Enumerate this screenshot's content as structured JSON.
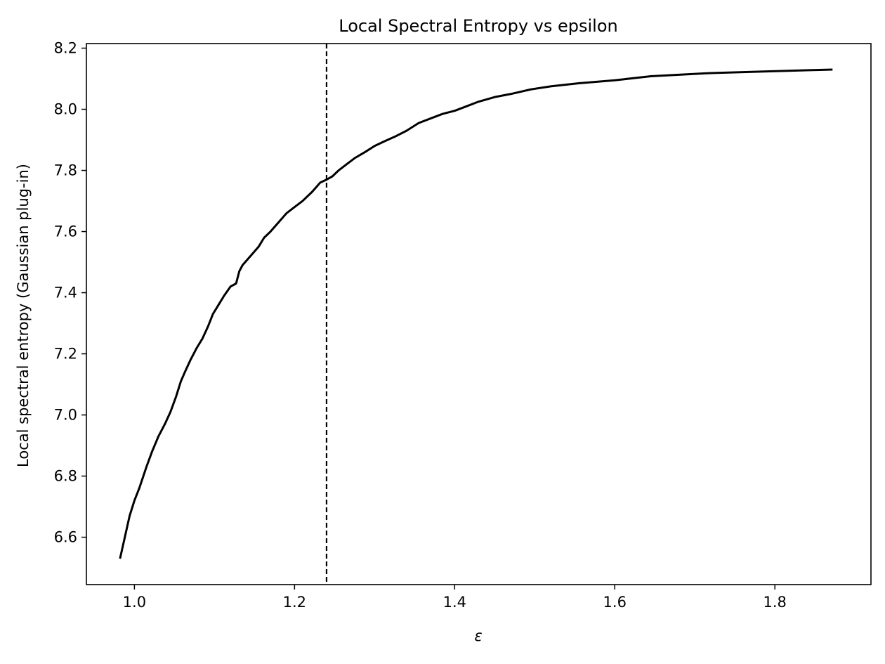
{
  "chart_data": {
    "type": "line",
    "title": "Local Spectral Entropy vs epsilon",
    "xlabel": "ε",
    "ylabel": "Local spectral entropy (Gaussian plug-in)",
    "xlim": [
      0.94,
      1.92
    ],
    "ylim": [
      6.445,
      8.215
    ],
    "xticks": [
      1.0,
      1.2,
      1.4,
      1.6,
      1.8
    ],
    "xtick_labels": [
      "1.0",
      "1.2",
      "1.4",
      "1.6",
      "1.8"
    ],
    "yticks": [
      6.6,
      6.8,
      7.0,
      7.2,
      7.4,
      7.6,
      7.8,
      8.0,
      8.2
    ],
    "ytick_labels": [
      "6.6",
      "6.8",
      "7.0",
      "7.2",
      "7.4",
      "7.6",
      "7.8",
      "8.0",
      "8.2"
    ],
    "grid": false,
    "vline": {
      "x": 1.24,
      "style": "dashed",
      "color": "#000000"
    },
    "series": [
      {
        "color": "#000000",
        "x": [
          0.982,
          0.988,
          0.994,
          1.0,
          1.006,
          1.015,
          1.022,
          1.03,
          1.038,
          1.045,
          1.052,
          1.058,
          1.063,
          1.07,
          1.078,
          1.085,
          1.092,
          1.098,
          1.105,
          1.112,
          1.12,
          1.127,
          1.131,
          1.135,
          1.145,
          1.155,
          1.162,
          1.17,
          1.18,
          1.19,
          1.2,
          1.21,
          1.222,
          1.232,
          1.24,
          1.247,
          1.255,
          1.265,
          1.275,
          1.288,
          1.3,
          1.312,
          1.325,
          1.34,
          1.355,
          1.37,
          1.385,
          1.4,
          1.415,
          1.43,
          1.45,
          1.47,
          1.495,
          1.52,
          1.555,
          1.6,
          1.645,
          1.715,
          1.79,
          1.872
        ],
        "y": [
          6.53,
          6.6,
          6.67,
          6.72,
          6.76,
          6.83,
          6.88,
          6.93,
          6.97,
          7.01,
          7.06,
          7.11,
          7.14,
          7.18,
          7.22,
          7.25,
          7.29,
          7.33,
          7.36,
          7.39,
          7.42,
          7.43,
          7.47,
          7.49,
          7.52,
          7.55,
          7.58,
          7.6,
          7.63,
          7.66,
          7.68,
          7.7,
          7.73,
          7.76,
          7.77,
          7.78,
          7.8,
          7.82,
          7.84,
          7.86,
          7.88,
          7.895,
          7.91,
          7.93,
          7.955,
          7.97,
          7.985,
          7.995,
          8.01,
          8.025,
          8.04,
          8.05,
          8.065,
          8.075,
          8.085,
          8.095,
          8.108,
          8.118,
          8.124,
          8.13
        ]
      }
    ]
  }
}
